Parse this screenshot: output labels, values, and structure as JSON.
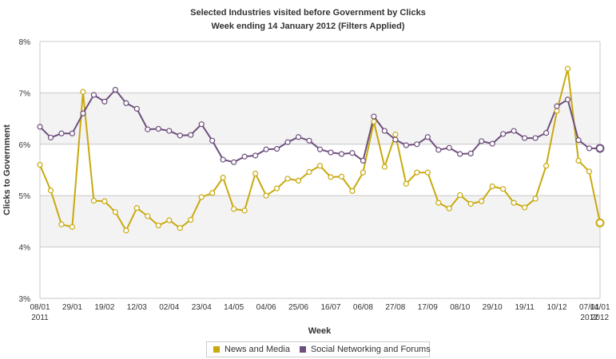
{
  "chart_data": {
    "type": "line",
    "title": "Selected Industries visited before Government by Clicks",
    "subtitle": "Week ending 14 January 2012 (Filters Applied)",
    "xlabel": "Week",
    "ylabel": "Clicks to Government",
    "ylim": [
      3,
      8
    ],
    "y_ticks": [
      "3%",
      "4%",
      "5%",
      "6%",
      "7%",
      "8%"
    ],
    "x_tick_labels": [
      "08/01",
      "29/01",
      "19/02",
      "12/03",
      "02/04",
      "23/04",
      "14/05",
      "04/06",
      "25/06",
      "16/07",
      "06/08",
      "27/08",
      "17/09",
      "08/10",
      "29/10",
      "19/11",
      "10/12",
      "07/01",
      "14/01"
    ],
    "x_tick_indices": [
      0,
      3,
      6,
      9,
      12,
      15,
      18,
      21,
      24,
      27,
      30,
      33,
      36,
      39,
      42,
      45,
      48,
      51,
      52
    ],
    "x_year_labels": [
      {
        "index": 0,
        "label": "2011"
      },
      {
        "index": 51,
        "label": "2012"
      },
      {
        "index": 52,
        "label": "2012"
      }
    ],
    "grid": true,
    "legend_position": "bottom",
    "series": [
      {
        "name": "News and Media",
        "color": "#c9a90e",
        "values": [
          5.6,
          5.1,
          4.44,
          4.39,
          7.02,
          4.9,
          4.89,
          4.68,
          4.32,
          4.76,
          4.6,
          4.42,
          4.52,
          4.37,
          4.53,
          4.97,
          5.05,
          5.35,
          4.74,
          4.71,
          5.43,
          5.0,
          5.14,
          5.33,
          5.29,
          5.46,
          5.58,
          5.36,
          5.37,
          5.09,
          5.45,
          6.44,
          5.56,
          6.19,
          5.23,
          5.45,
          5.45,
          4.86,
          4.75,
          5.01,
          4.84,
          4.89,
          5.18,
          5.13,
          4.86,
          4.77,
          4.94,
          5.58,
          6.65,
          7.47,
          5.68,
          5.47,
          4.47
        ]
      },
      {
        "name": "Social Networking and Forums",
        "color": "#6e4f7d",
        "values": [
          6.34,
          6.13,
          6.21,
          6.21,
          6.6,
          6.96,
          6.83,
          7.06,
          6.8,
          6.69,
          6.29,
          6.3,
          6.26,
          6.17,
          6.18,
          6.39,
          6.07,
          5.7,
          5.65,
          5.76,
          5.78,
          5.9,
          5.91,
          6.04,
          6.14,
          6.07,
          5.9,
          5.84,
          5.81,
          5.83,
          5.68,
          6.54,
          6.26,
          6.09,
          5.98,
          6.0,
          6.14,
          5.89,
          5.93,
          5.81,
          5.82,
          6.06,
          6.01,
          6.2,
          6.26,
          6.12,
          6.12,
          6.22,
          6.74,
          6.87,
          6.08,
          5.92,
          5.92
        ]
      }
    ]
  }
}
